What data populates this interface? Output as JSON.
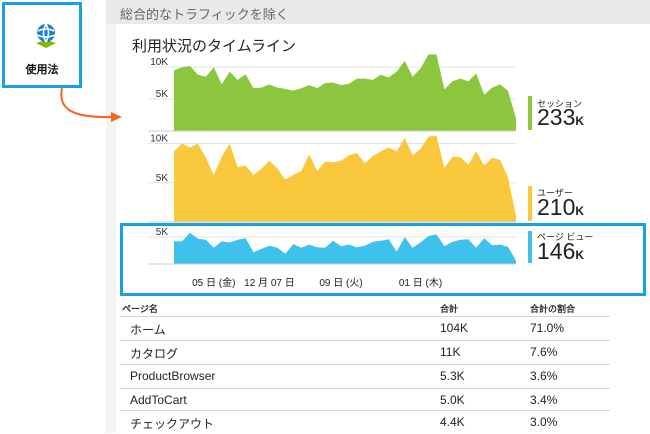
{
  "tile": {
    "label": "使用法",
    "icon": "globe-icon"
  },
  "blade": {
    "title": "総合的なトラフィックを除く"
  },
  "chart": {
    "title": "利用状況のタイムライン"
  },
  "chart_data": [
    {
      "type": "area",
      "name": "セッション",
      "color": "#8cc63f",
      "ylim": [
        0,
        13000
      ],
      "yticks": [
        "10K",
        "5K"
      ],
      "yticks_values": [
        10000,
        5000
      ],
      "values": [
        9500,
        10000,
        10200,
        8800,
        8500,
        10000,
        7300,
        9300,
        8000,
        8900,
        6700,
        6800,
        7300,
        6800,
        6600,
        6300,
        6700,
        7200,
        6700,
        7500,
        7600,
        7200,
        7400,
        8200,
        8200,
        8000,
        8800,
        8400,
        9300,
        11000,
        8500,
        9800,
        12000,
        12000,
        6500,
        7800,
        8200,
        7800,
        9000,
        5700,
        6800,
        7300,
        6300,
        2000
      ],
      "total": "233",
      "unit": "K"
    },
    {
      "type": "area",
      "name": "ユーザー",
      "color": "#f9c83d",
      "ylim": [
        0,
        13000
      ],
      "yticks": [
        "10K",
        "5K"
      ],
      "yticks_values": [
        10000,
        5000
      ],
      "values": [
        9000,
        10000,
        9500,
        10000,
        8200,
        6000,
        8300,
        10000,
        7000,
        7200,
        6000,
        6800,
        7800,
        6800,
        5400,
        6000,
        6500,
        8600,
        6500,
        7700,
        7600,
        7800,
        8500,
        8800,
        7500,
        8400,
        9000,
        9500,
        9000,
        10700,
        8500,
        9300,
        10900,
        11000,
        6900,
        8300,
        8300,
        7300,
        9000,
        7200,
        8200,
        7900,
        5700,
        800
      ],
      "total": "210",
      "unit": "K"
    },
    {
      "type": "area",
      "name": "ページ ビュー",
      "color": "#3ec1ec",
      "ylim": [
        0,
        6500
      ],
      "yticks": [
        "5K"
      ],
      "yticks_values": [
        5000
      ],
      "values": [
        4200,
        4200,
        5800,
        4700,
        4500,
        3000,
        4200,
        4000,
        4500,
        4800,
        2200,
        2800,
        3400,
        3000,
        1900,
        3700,
        3000,
        3600,
        3100,
        3000,
        4300,
        3300,
        3600,
        3100,
        3400,
        4100,
        4300,
        4600,
        2300,
        5000,
        3000,
        4000,
        5200,
        5500,
        3300,
        4100,
        4500,
        4600,
        3000,
        4800,
        3500,
        3600,
        3200,
        600
      ],
      "total": "146",
      "unit": "K"
    }
  ],
  "xaxis": {
    "labels": [
      "05 日 (金)",
      "12 月 07 日",
      "09 日 (火)",
      "01 日 (木)"
    ],
    "positions": [
      5,
      12,
      21,
      31
    ]
  },
  "table": {
    "headers": {
      "name": "ページ名",
      "total": "合計",
      "pct": "合計の割合"
    },
    "rows": [
      {
        "name": "ホーム",
        "total": "104K",
        "pct": "71.0%"
      },
      {
        "name": "カタログ",
        "total": "11K",
        "pct": "7.6%"
      },
      {
        "name": "ProductBrowser",
        "total": "5.3K",
        "pct": "3.6%"
      },
      {
        "name": "AddToCart",
        "total": "5.0K",
        "pct": "3.4%"
      },
      {
        "name": "チェックアウト",
        "total": "4.4K",
        "pct": "3.0%"
      }
    ]
  }
}
